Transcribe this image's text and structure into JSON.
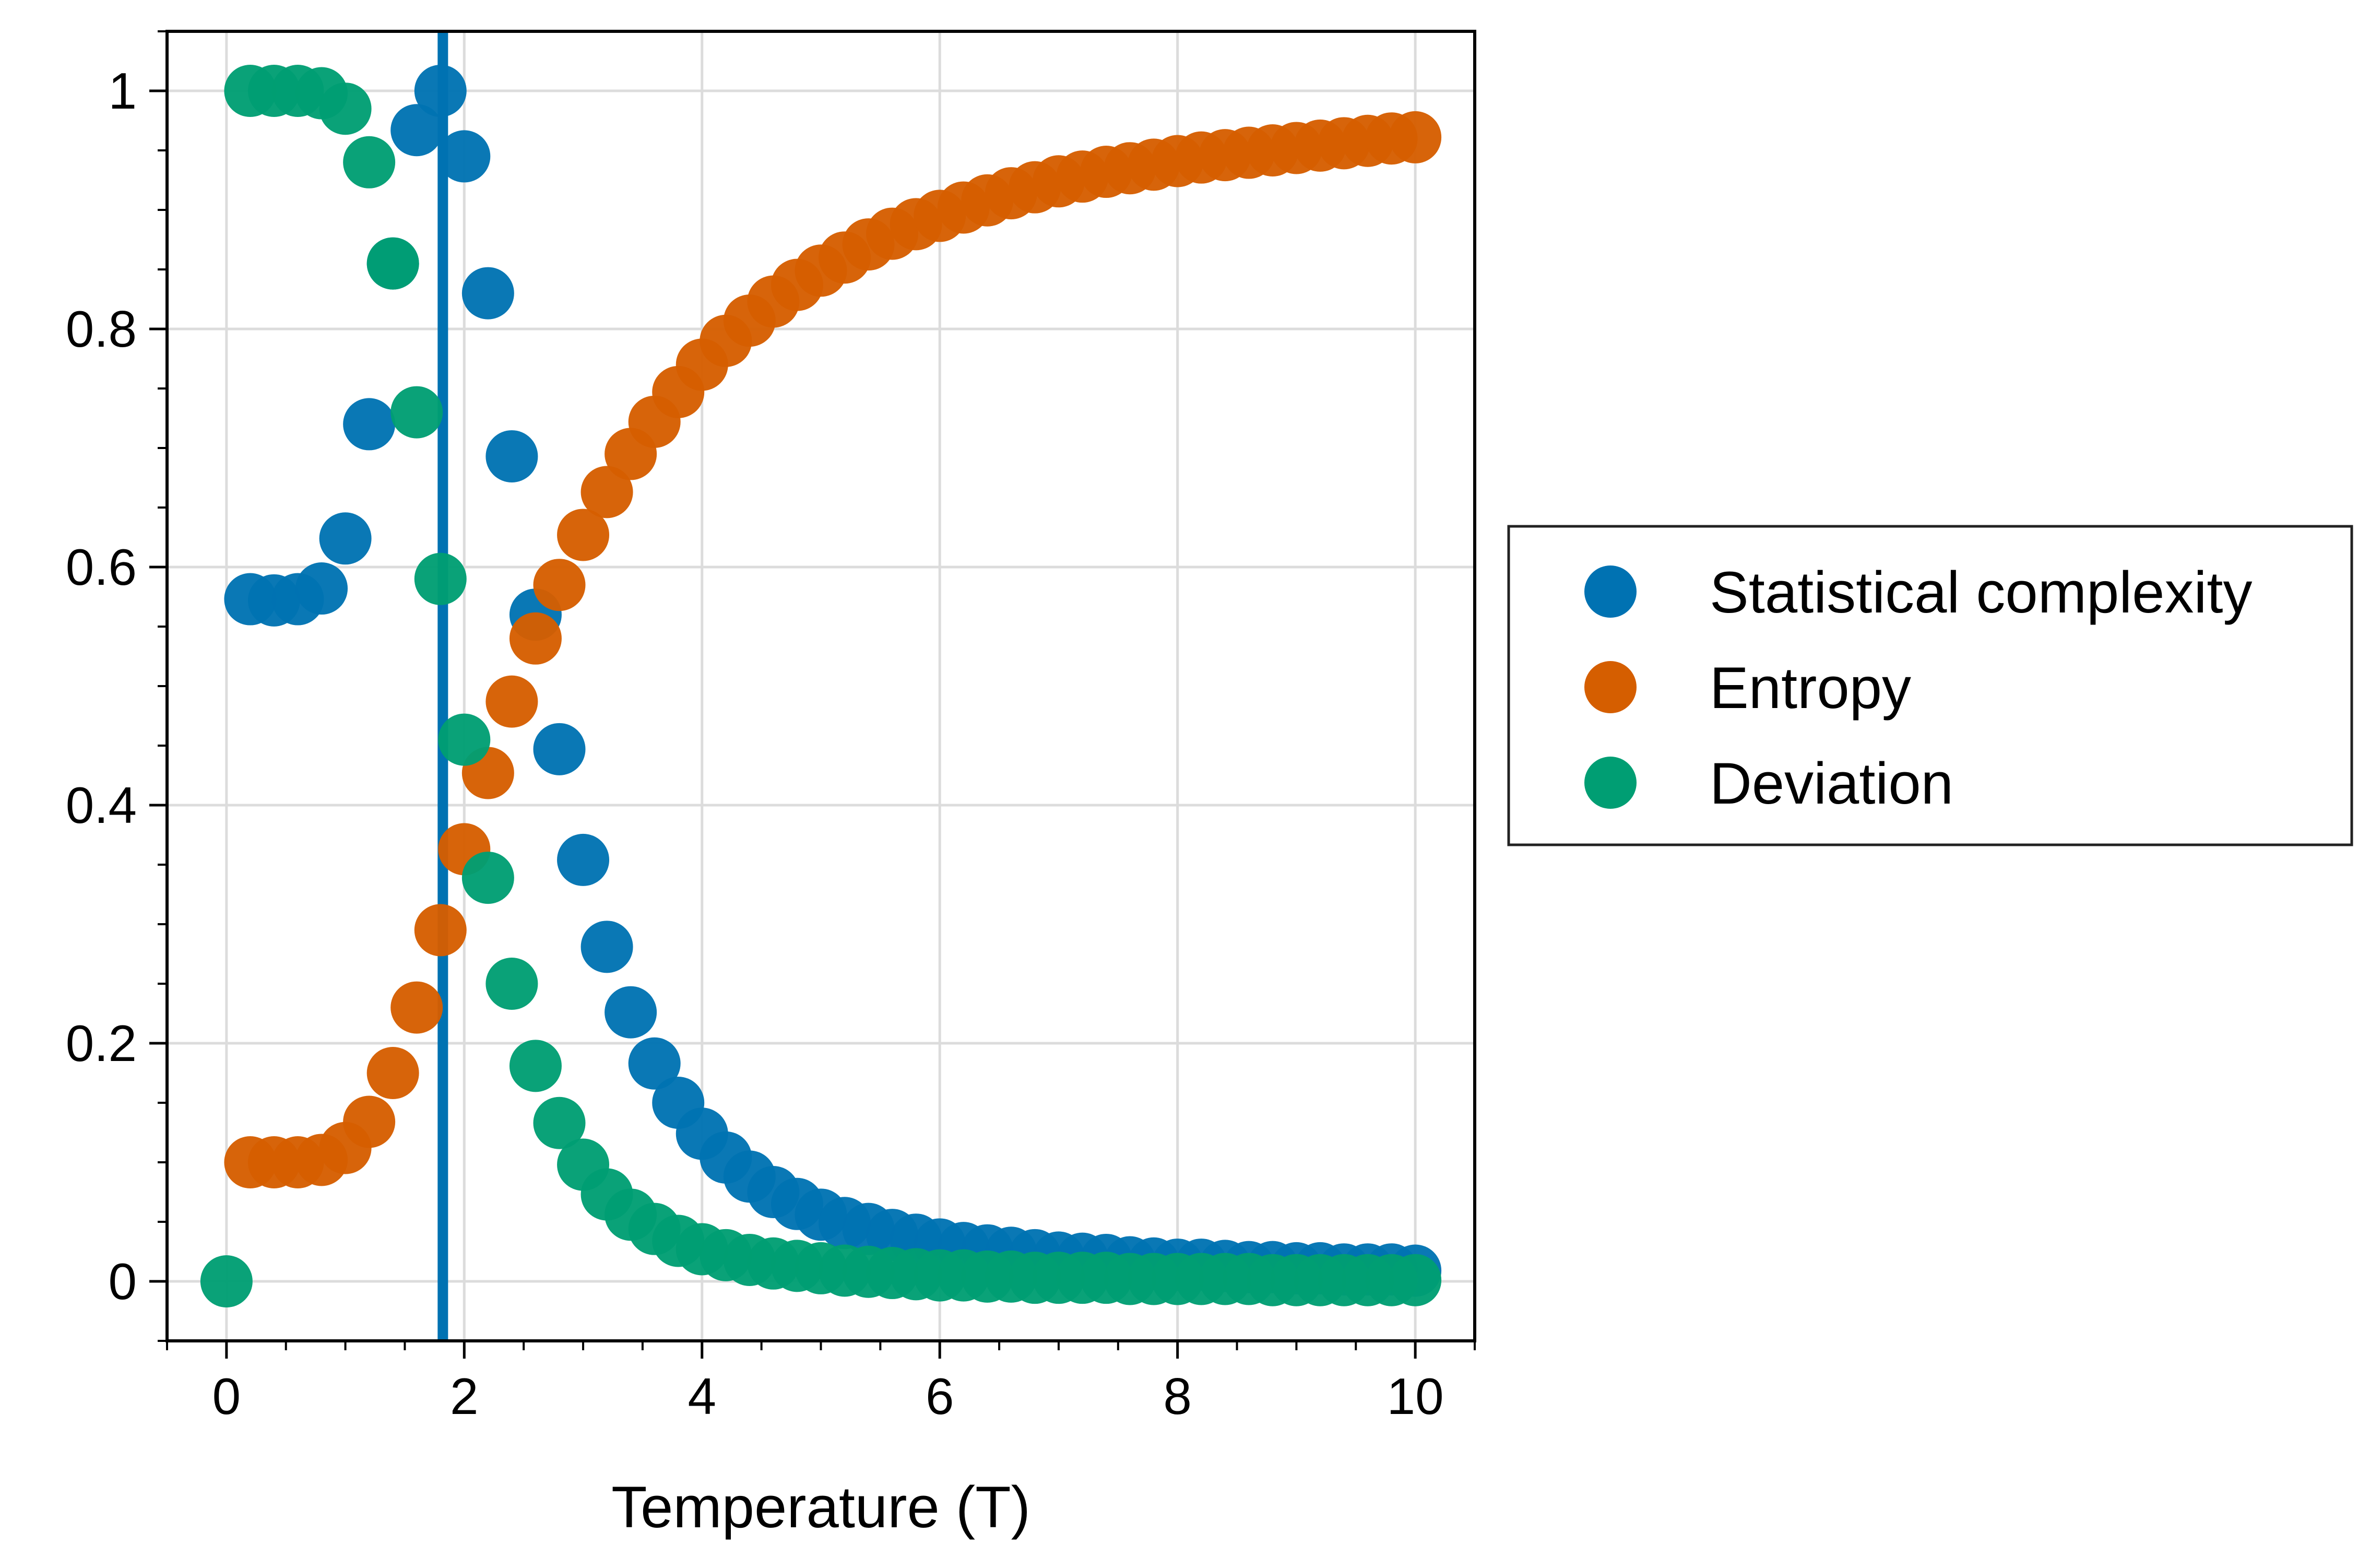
{
  "chart_data": {
    "type": "scatter",
    "xlabel": "Temperature (T)",
    "ylabel": "",
    "xlim": [
      -0.5,
      10.5
    ],
    "ylim": [
      -0.05,
      1.05
    ],
    "x_ticks": [
      "0",
      "2",
      "4",
      "6",
      "8",
      "10"
    ],
    "y_ticks": [
      "0",
      "0.2",
      "0.4",
      "0.6",
      "0.8",
      "1"
    ],
    "grid": true,
    "legend_position": "outside-right",
    "vertical_line": {
      "x": 1.82,
      "color": "#0072b2"
    },
    "x": [
      0.0,
      0.2,
      0.4,
      0.6,
      0.8,
      1.0,
      1.2,
      1.4,
      1.6,
      1.8,
      2.0,
      2.2,
      2.4,
      2.6,
      2.8,
      3.0,
      3.2,
      3.4,
      3.6,
      3.8,
      4.0,
      4.2,
      4.4,
      4.6,
      4.8,
      5.0,
      5.2,
      5.4,
      5.6,
      5.8,
      6.0,
      6.2,
      6.4,
      6.6,
      6.8,
      7.0,
      7.2,
      7.4,
      7.6,
      7.8,
      8.0,
      8.2,
      8.4,
      8.6,
      8.8,
      9.0,
      9.2,
      9.4,
      9.6,
      9.8,
      10.0
    ],
    "series": [
      {
        "name": "Statistical complexity",
        "color": "#0072b2",
        "values": [
          null,
          0.573,
          0.572,
          0.573,
          0.582,
          0.624,
          0.72,
          0.855,
          0.967,
          1.0,
          0.945,
          0.83,
          0.693,
          0.56,
          0.447,
          0.354,
          0.281,
          0.226,
          0.183,
          0.15,
          0.124,
          0.104,
          0.088,
          0.075,
          0.065,
          0.056,
          0.049,
          0.044,
          0.039,
          0.035,
          0.031,
          0.028,
          0.026,
          0.024,
          0.022,
          0.02,
          0.019,
          0.018,
          0.016,
          0.015,
          0.014,
          0.014,
          0.013,
          0.012,
          0.012,
          0.011,
          0.011,
          0.01,
          0.01,
          0.01,
          0.009
        ]
      },
      {
        "name": "Entropy",
        "color": "#d55e00",
        "values": [
          null,
          0.1,
          0.1,
          0.1,
          0.102,
          0.112,
          0.134,
          0.175,
          0.23,
          0.295,
          0.363,
          0.427,
          0.487,
          0.54,
          0.585,
          0.627,
          0.663,
          0.695,
          0.722,
          0.747,
          0.77,
          0.79,
          0.807,
          0.823,
          0.837,
          0.849,
          0.86,
          0.871,
          0.88,
          0.888,
          0.895,
          0.902,
          0.908,
          0.914,
          0.919,
          0.924,
          0.928,
          0.932,
          0.935,
          0.938,
          0.941,
          0.944,
          0.946,
          0.948,
          0.95,
          0.952,
          0.954,
          0.956,
          0.958,
          0.96,
          0.961
        ]
      },
      {
        "name": "Deviation",
        "color": "#009e73",
        "values": [
          0.0,
          1.0,
          1.0,
          1.0,
          0.998,
          0.985,
          0.94,
          0.855,
          0.73,
          0.59,
          0.455,
          0.339,
          0.25,
          0.181,
          0.133,
          0.098,
          0.073,
          0.056,
          0.044,
          0.034,
          0.027,
          0.022,
          0.018,
          0.015,
          0.013,
          0.011,
          0.009,
          0.008,
          0.007,
          0.006,
          0.005,
          0.005,
          0.004,
          0.004,
          0.003,
          0.003,
          0.003,
          0.003,
          0.002,
          0.002,
          0.002,
          0.002,
          0.002,
          0.002,
          0.001,
          0.001,
          0.001,
          0.001,
          0.001,
          0.001,
          0.001
        ]
      }
    ]
  }
}
